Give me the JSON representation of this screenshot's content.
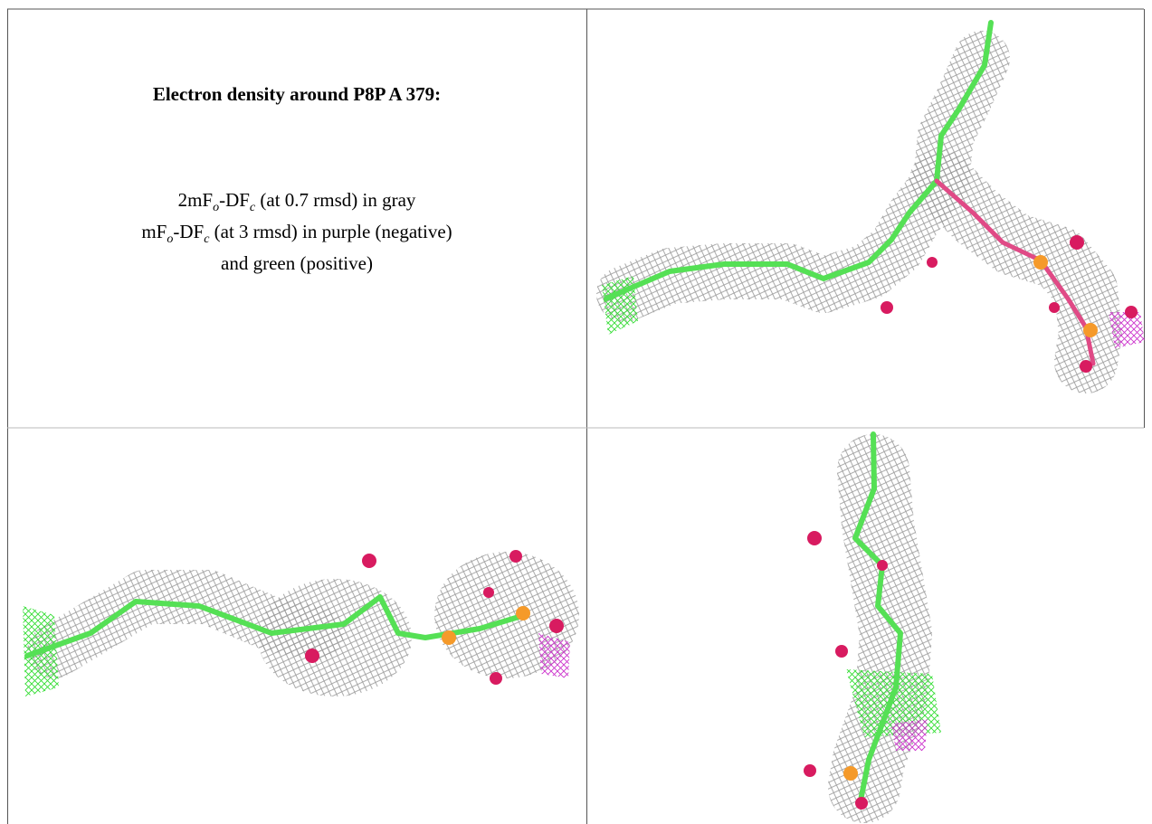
{
  "panel": {
    "title": "Electron density around P8P A 379:",
    "caption": [
      [
        "2mF",
        "o",
        "-DF",
        "c",
        " (at 0.7 rmsd) in gray"
      ],
      [
        "mF",
        "o",
        "-DF",
        "c",
        " (at 3 rmsd) in purple (negative)"
      ],
      [
        "and green (positive)"
      ]
    ]
  }
}
